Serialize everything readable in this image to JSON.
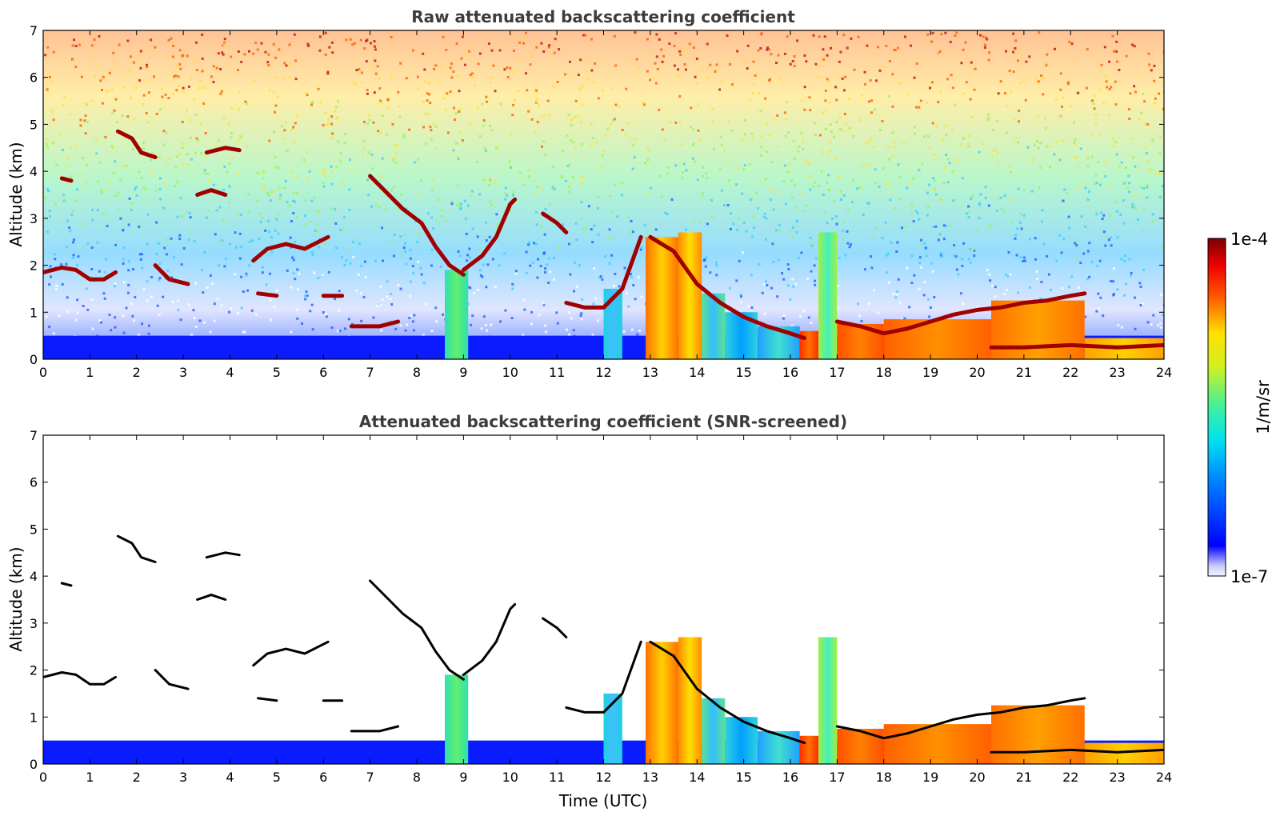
{
  "chart_data": [
    {
      "type": "heatmap",
      "title": "Raw attenuated backscattering coefficient",
      "xlabel": "",
      "ylabel": "Altitude (km)",
      "xlim": [
        0,
        24
      ],
      "ylim": [
        0,
        7
      ],
      "xticks": [
        "0",
        "1",
        "2",
        "3",
        "4",
        "5",
        "6",
        "7",
        "8",
        "9",
        "10",
        "11",
        "12",
        "13",
        "14",
        "15",
        "16",
        "17",
        "18",
        "19",
        "20",
        "21",
        "22",
        "23",
        "24"
      ],
      "yticks": [
        "0",
        "1",
        "2",
        "3",
        "4",
        "5",
        "6",
        "7"
      ],
      "grid": false
    },
    {
      "type": "heatmap",
      "title": "Attenuated backscattering coefficient (SNR-screened)",
      "xlabel": "Time (UTC)",
      "ylabel": "Altitude (km)",
      "xlim": [
        0,
        24
      ],
      "ylim": [
        0,
        7
      ],
      "xticks": [
        "0",
        "1",
        "2",
        "3",
        "4",
        "5",
        "6",
        "7",
        "8",
        "9",
        "10",
        "11",
        "12",
        "13",
        "14",
        "15",
        "16",
        "17",
        "18",
        "19",
        "20",
        "21",
        "22",
        "23",
        "24"
      ],
      "yticks": [
        "0",
        "1",
        "2",
        "3",
        "4",
        "5",
        "6",
        "7"
      ],
      "grid": false
    }
  ],
  "colorbar": {
    "label": "1/m/sr",
    "max_label": "1e-4",
    "min_label": "1e-7",
    "scale": "log",
    "colormap": "jet"
  }
}
